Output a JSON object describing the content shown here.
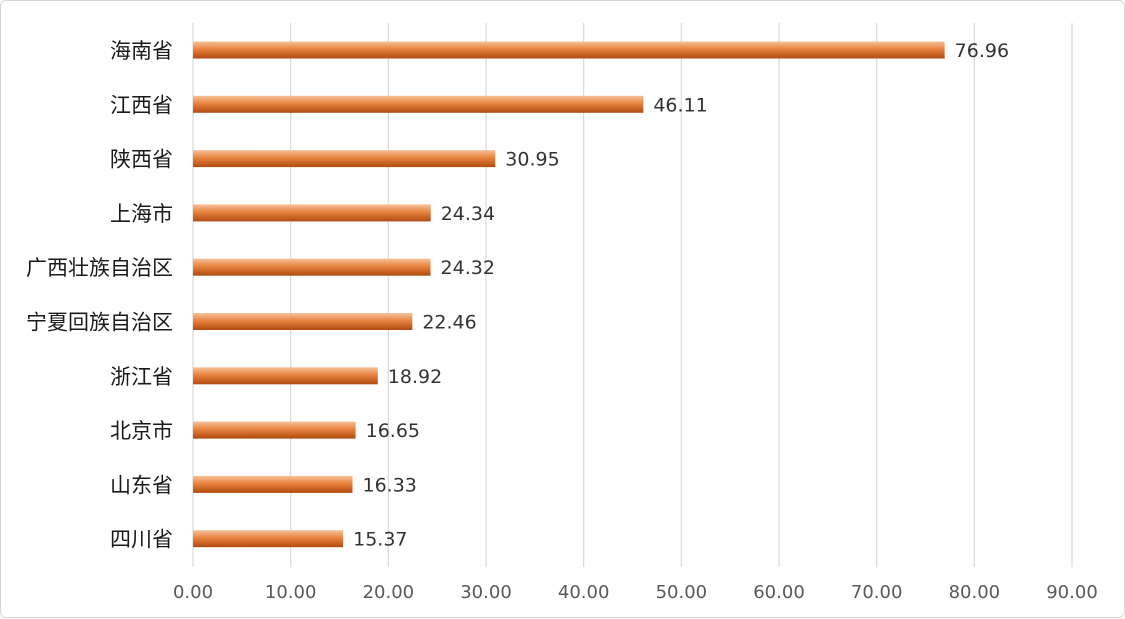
{
  "chart_data": {
    "type": "bar",
    "orientation": "horizontal",
    "categories": [
      "海南省",
      "江西省",
      "陕西省",
      "上海市",
      "广西壮族自治区",
      "宁夏回族自治区",
      "浙江省",
      "北京市",
      "山东省",
      "四川省"
    ],
    "values": [
      76.96,
      46.11,
      30.95,
      24.34,
      24.32,
      22.46,
      18.92,
      16.65,
      16.33,
      15.37
    ],
    "value_labels": [
      "76.96",
      "46.11",
      "30.95",
      "24.34",
      "24.32",
      "22.46",
      "18.92",
      "16.65",
      "16.33",
      "15.37"
    ],
    "xlim": [
      0,
      90
    ],
    "x_ticks": [
      "0.00",
      "10.00",
      "20.00",
      "30.00",
      "40.00",
      "50.00",
      "60.00",
      "70.00",
      "80.00",
      "90.00"
    ],
    "grid": "vertical",
    "legend": "none",
    "title": "",
    "xlabel": "",
    "ylabel": ""
  },
  "colors": {
    "bar_light": "#f6c29a",
    "bar_mid": "#e8833f",
    "bar_dark": "#b04a10",
    "grid": "#d9d9d9"
  }
}
